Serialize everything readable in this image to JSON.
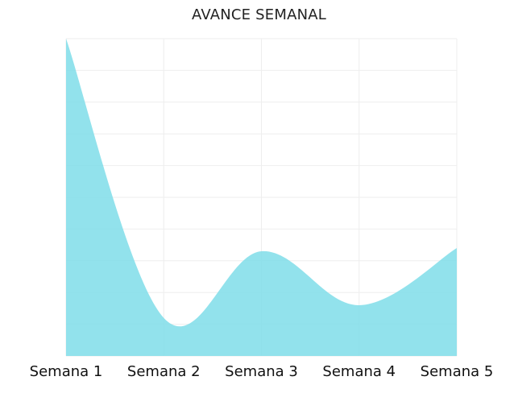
{
  "chart_data": {
    "type": "area",
    "title": "AVANCE SEMANAL",
    "categories": [
      "Semana 1",
      "Semana 2",
      "Semana 3",
      "Semana 4",
      "Semana 5"
    ],
    "series": [
      {
        "values": [
          100,
          12,
          33,
          16,
          34
        ],
        "color": "#7fdde9"
      }
    ],
    "ylim": [
      0,
      100
    ],
    "grid": true,
    "legend": "none",
    "xlabel": "",
    "ylabel": ""
  }
}
